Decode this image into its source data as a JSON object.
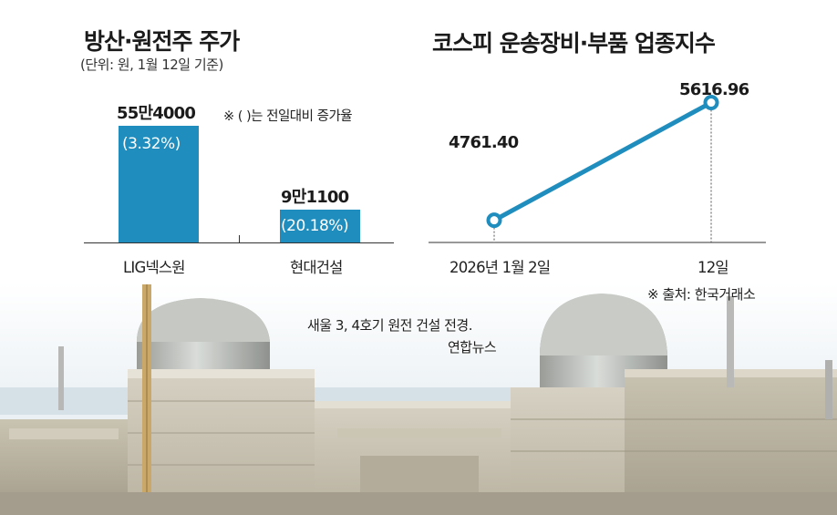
{
  "charts": {
    "left": {
      "title": "방산·원전주 주가",
      "unit_note": "(단위: 원, 1월 12일 기준)",
      "legend_note": "※ (   )는 전일대비 증가율"
    },
    "right": {
      "title": "코스피 운송장비·부품 업종지수",
      "source_note": "※ 출처: 한국거래소"
    }
  },
  "photo_caption": {
    "line1": "새울 3, 4호기 원전 건설 전경.",
    "line2": "연합뉴스"
  },
  "colors": {
    "bar": "#1f8dbd",
    "line": "#1f8dbd",
    "axis": "#333333"
  },
  "chart_data": [
    {
      "type": "bar",
      "title": "방산·원전주 주가",
      "categories": [
        "LIG넥스원",
        "현대건설"
      ],
      "values": [
        554000,
        91100
      ],
      "value_labels": [
        "55만4000",
        "9만1100"
      ],
      "change_labels": [
        "(3.32%)",
        "(20.18%)"
      ],
      "change_pct": [
        3.32,
        20.18
      ],
      "ylim": [
        0,
        554000
      ]
    },
    {
      "type": "line",
      "title": "코스피 운송장비·부품 업종지수",
      "categories": [
        "2026년 1월 2일",
        "12일"
      ],
      "values": [
        4761.4,
        5616.96
      ],
      "value_labels": [
        "4761.40",
        "5616.96"
      ],
      "ylim": [
        4600,
        5700
      ]
    }
  ]
}
